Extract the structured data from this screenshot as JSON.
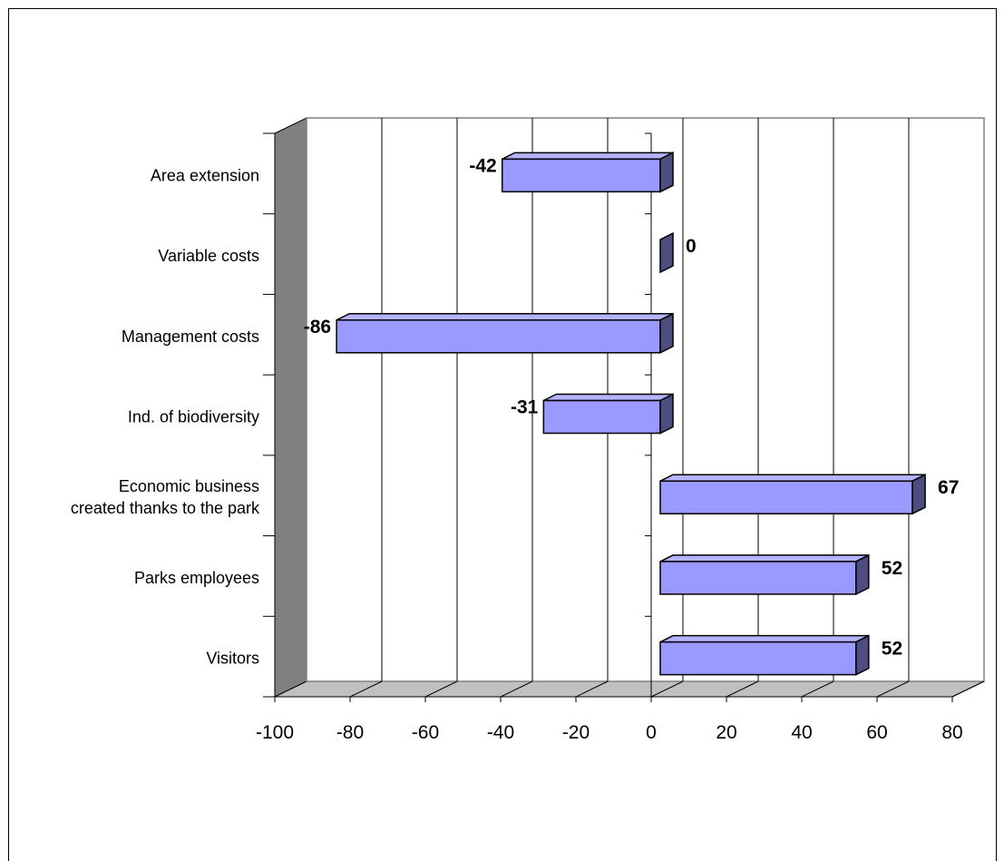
{
  "chart_data": {
    "type": "bar",
    "orientation": "horizontal",
    "style": "3d",
    "categories": [
      "Area extension",
      "Variable costs",
      "Management costs",
      "Ind. of biodiversity",
      "Economic business created thanks to the park",
      "Parks employees",
      "Visitors"
    ],
    "category_lines": [
      [
        "Area extension"
      ],
      [
        "Variable costs"
      ],
      [
        "Management costs"
      ],
      [
        "Ind. of biodiversity"
      ],
      [
        "Economic business",
        "created thanks to the park"
      ],
      [
        "Parks employees"
      ],
      [
        "Visitors"
      ]
    ],
    "values": [
      -42,
      0,
      -86,
      -31,
      67,
      52,
      52
    ],
    "data_labels": [
      "-42",
      "0",
      "-86",
      "-31",
      "67",
      "52",
      "52"
    ],
    "xlim": [
      -100,
      80
    ],
    "x_ticks": [
      -100,
      -80,
      -60,
      -40,
      -20,
      0,
      20,
      40,
      60,
      80
    ],
    "x_tick_labels": [
      "-100",
      "-80",
      "-60",
      "-40",
      "-20",
      "0",
      "20",
      "40",
      "60",
      "80"
    ],
    "grid": true,
    "legend": "none",
    "colors": {
      "bar_front": "#9999ff",
      "bar_top": "#b3b3ff",
      "bar_side": "#4d4d80",
      "side_wall": "#808080",
      "floor": "#c0c0c0",
      "gridline": "#000000"
    }
  }
}
